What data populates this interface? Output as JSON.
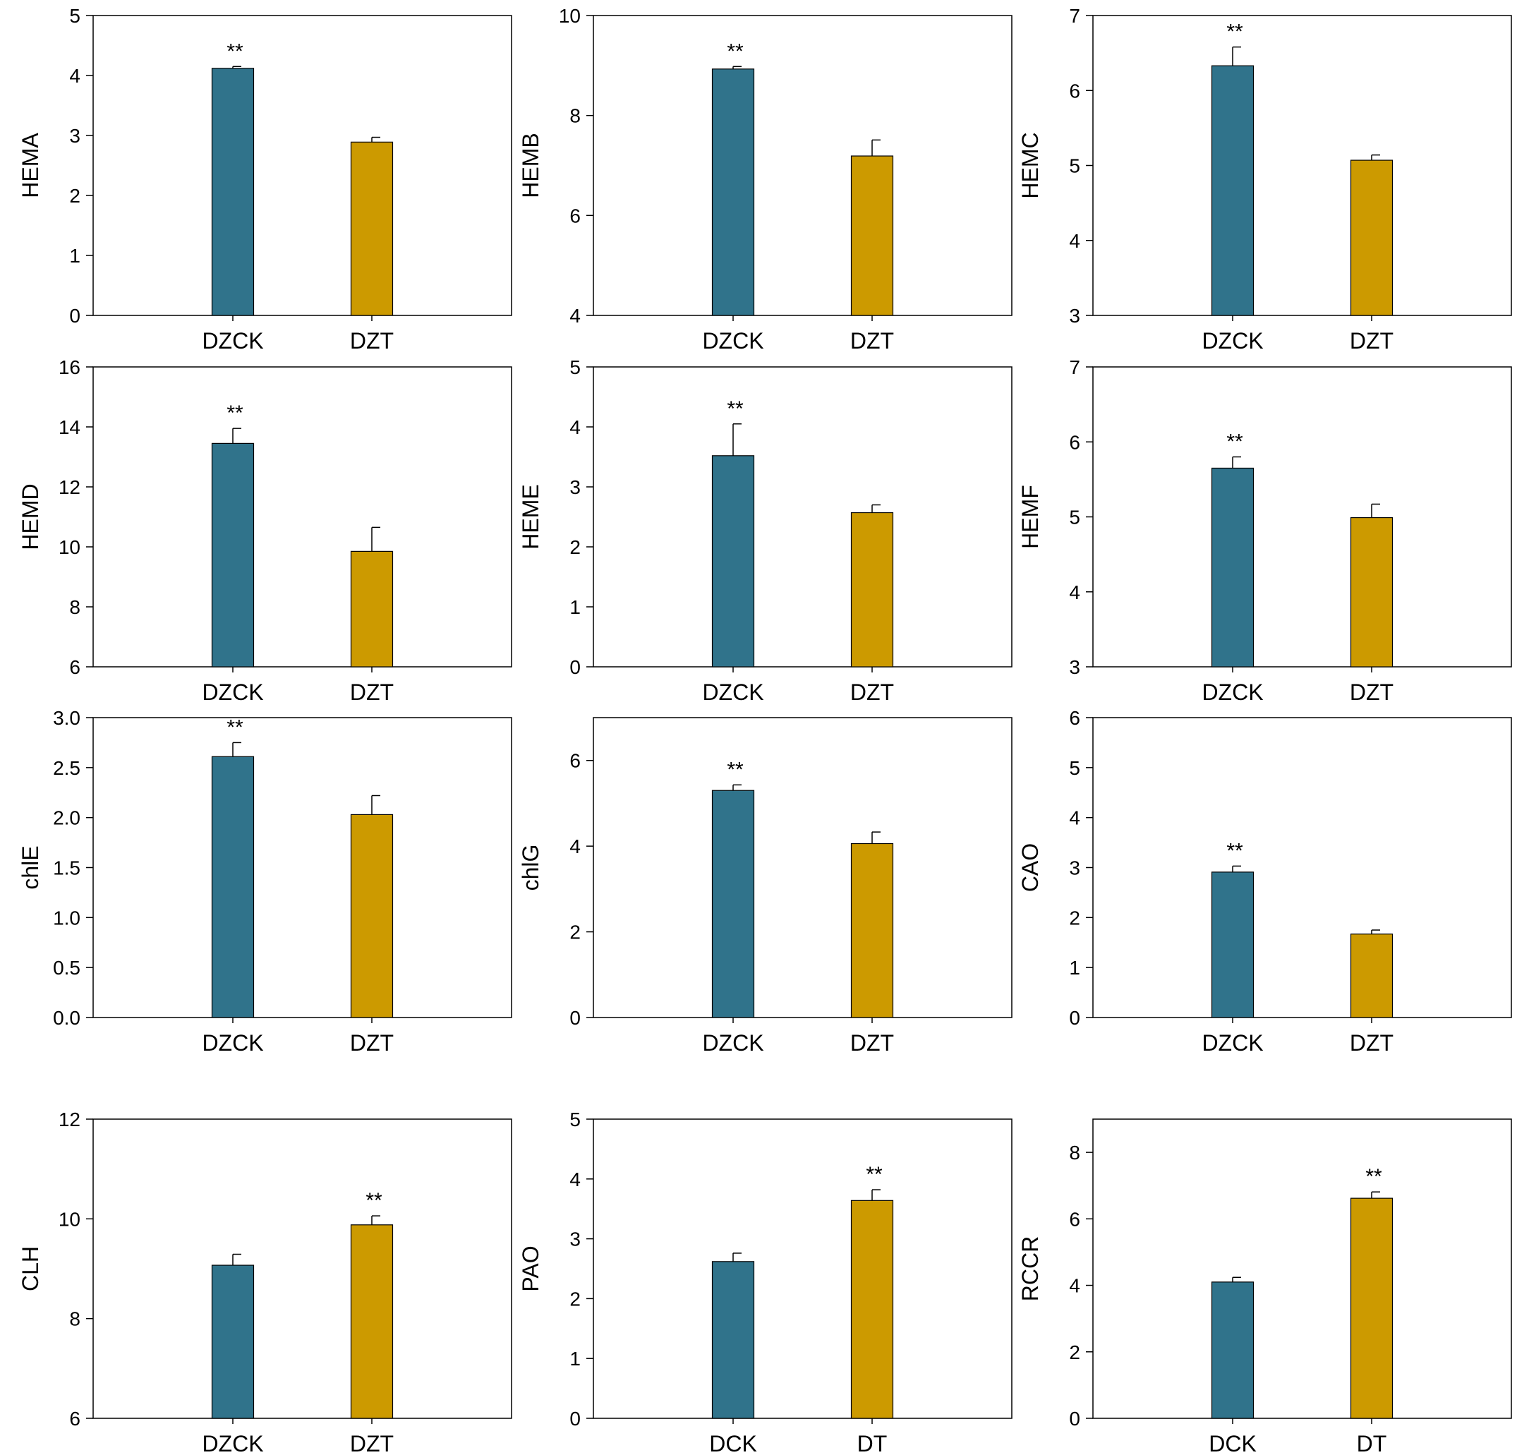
{
  "colors": {
    "control": "#30738b",
    "treatment": "#cc9a00",
    "axis": "#000000",
    "background": "#ffffff"
  },
  "chart_data": [
    {
      "type": "bar",
      "ylabel": "HEMA",
      "categories": [
        "DZCK",
        "DZT"
      ],
      "values": [
        4.12,
        2.89
      ],
      "errors": [
        0.03,
        0.08
      ],
      "ylim": [
        0,
        5
      ],
      "yticks": [
        "0",
        "1",
        "2",
        "3",
        "4",
        "5"
      ],
      "significance": [
        "**",
        ""
      ]
    },
    {
      "type": "bar",
      "ylabel": "HEMB",
      "categories": [
        "DZCK",
        "DZT"
      ],
      "values": [
        8.93,
        7.19
      ],
      "errors": [
        0.05,
        0.32
      ],
      "ylim": [
        4,
        10
      ],
      "yticks": [
        "4",
        "6",
        "8",
        "10"
      ],
      "significance": [
        "**",
        ""
      ]
    },
    {
      "type": "bar",
      "ylabel": "HEMC",
      "categories": [
        "DZCK",
        "DZT"
      ],
      "values": [
        6.33,
        5.07
      ],
      "errors": [
        0.25,
        0.07
      ],
      "ylim": [
        3,
        7
      ],
      "yticks": [
        "3",
        "4",
        "5",
        "6",
        "7"
      ],
      "significance": [
        "**",
        ""
      ]
    },
    {
      "type": "bar",
      "ylabel": "HEMD",
      "categories": [
        "DZCK",
        "DZT"
      ],
      "values": [
        13.45,
        9.85
      ],
      "errors": [
        0.5,
        0.8
      ],
      "ylim": [
        6,
        16
      ],
      "yticks": [
        "6",
        "8",
        "10",
        "12",
        "14",
        "16"
      ],
      "significance": [
        "**",
        ""
      ]
    },
    {
      "type": "bar",
      "ylabel": "HEME",
      "categories": [
        "DZCK",
        "DZT"
      ],
      "values": [
        3.52,
        2.57
      ],
      "errors": [
        0.53,
        0.13
      ],
      "ylim": [
        0,
        5
      ],
      "yticks": [
        "0",
        "1",
        "2",
        "3",
        "4",
        "5"
      ],
      "significance": [
        "**",
        ""
      ]
    },
    {
      "type": "bar",
      "ylabel": "HEMF",
      "categories": [
        "DZCK",
        "DZT"
      ],
      "values": [
        5.65,
        4.99
      ],
      "errors": [
        0.15,
        0.18
      ],
      "ylim": [
        3,
        7
      ],
      "yticks": [
        "3",
        "4",
        "5",
        "6",
        "7"
      ],
      "significance": [
        "**",
        ""
      ]
    },
    {
      "type": "bar",
      "ylabel": "chlE",
      "categories": [
        "DZCK",
        "DZT"
      ],
      "values": [
        2.61,
        2.03
      ],
      "errors": [
        0.14,
        0.19
      ],
      "ylim": [
        0,
        3
      ],
      "yticks": [
        "0.0",
        "0.5",
        "1.0",
        "1.5",
        "2.0",
        "2.5",
        "3.0"
      ],
      "significance": [
        "**",
        ""
      ]
    },
    {
      "type": "bar",
      "ylabel": "chlG",
      "categories": [
        "DZCK",
        "DZT"
      ],
      "values": [
        5.3,
        4.06
      ],
      "errors": [
        0.13,
        0.27
      ],
      "ylim": [
        0,
        7
      ],
      "yticks": [
        "0",
        "2",
        "4",
        "6"
      ],
      "significance": [
        "**",
        ""
      ]
    },
    {
      "type": "bar",
      "ylabel": "CAO",
      "categories": [
        "DZCK",
        "DZT"
      ],
      "values": [
        2.91,
        1.67
      ],
      "errors": [
        0.12,
        0.08
      ],
      "ylim": [
        0,
        6
      ],
      "yticks": [
        "0",
        "1",
        "2",
        "3",
        "4",
        "5",
        "6"
      ],
      "significance": [
        "**",
        ""
      ]
    },
    {
      "type": "bar",
      "ylabel": "CLH",
      "categories": [
        "DZCK",
        "DZT"
      ],
      "values": [
        9.07,
        9.88
      ],
      "errors": [
        0.22,
        0.18
      ],
      "ylim": [
        6,
        12
      ],
      "yticks": [
        "6",
        "8",
        "10",
        "12"
      ],
      "significance": [
        "",
        "**"
      ]
    },
    {
      "type": "bar",
      "ylabel": "PAO",
      "categories": [
        "DCK",
        "DT"
      ],
      "values": [
        2.62,
        3.64
      ],
      "errors": [
        0.14,
        0.18
      ],
      "ylim": [
        0,
        5
      ],
      "yticks": [
        "0",
        "1",
        "2",
        "3",
        "4",
        "5"
      ],
      "significance": [
        "",
        "**"
      ]
    },
    {
      "type": "bar",
      "ylabel": "RCCR",
      "categories": [
        "DCK",
        "DT"
      ],
      "values": [
        4.1,
        6.62
      ],
      "errors": [
        0.14,
        0.19
      ],
      "ylim": [
        0,
        9
      ],
      "yticks": [
        "0",
        "2",
        "4",
        "6",
        "8"
      ],
      "significance": [
        "",
        "**"
      ]
    }
  ]
}
